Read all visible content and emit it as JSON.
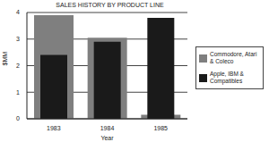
{
  "chart_data": {
    "type": "bar",
    "title": "SALES HISTORY BY PRODUCT LINE",
    "x_label": "Year",
    "y_label": "$MM",
    "categories": [
      "1983",
      "1984",
      "1985"
    ],
    "series": [
      {
        "name": "Commodore, Atari & Coleco",
        "color": "#7f7f7f",
        "values": [
          3.9,
          3.05,
          0.15
        ]
      },
      {
        "name": "Apple, IBM & Compatibles",
        "color": "#1a1a1a",
        "values": [
          2.4,
          2.9,
          3.8
        ]
      }
    ],
    "ylim": [
      0,
      4
    ],
    "yticks": [
      0,
      1,
      2,
      3,
      4
    ],
    "grid": true,
    "legend": "right"
  }
}
